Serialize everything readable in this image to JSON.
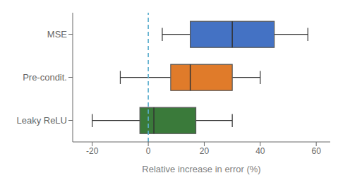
{
  "chart_data": {
    "type": "box",
    "orientation": "horizontal",
    "categories": [
      "MSE",
      "Pre-condit.",
      "Leaky ReLU"
    ],
    "colors": [
      "#4472C4",
      "#E07B2A",
      "#3A7A3A"
    ],
    "boxes": [
      {
        "whislo": 5,
        "q1": 15,
        "med": 30,
        "q3": 45,
        "whishi": 57
      },
      {
        "whislo": -10,
        "q1": 8,
        "med": 15,
        "q3": 30,
        "whishi": 40
      },
      {
        "whislo": -20,
        "q1": -3,
        "med": 2,
        "q3": 17,
        "whishi": 30
      }
    ],
    "xlabel": "Relative increase in error (%)",
    "xlim": [
      -27,
      65
    ],
    "xticks": [
      -20,
      0,
      20,
      40,
      60
    ],
    "reference_line": {
      "x": 0,
      "color": "#5AADCC",
      "line_style": "dashed"
    }
  }
}
